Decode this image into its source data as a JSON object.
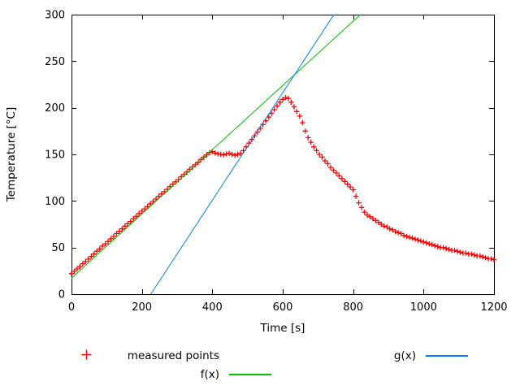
{
  "chart_data": {
    "type": "scatter",
    "title": "",
    "xlabel": "Time [s]",
    "ylabel": "Temperature [°C]",
    "xlim": [
      0,
      1200
    ],
    "ylim": [
      0,
      300
    ],
    "xticks": [
      0,
      200,
      400,
      600,
      800,
      1000,
      1200
    ],
    "yticks": [
      0,
      50,
      100,
      150,
      200,
      250,
      300
    ],
    "grid": false,
    "legend_position": "below-plot",
    "series": [
      {
        "id": "measured",
        "name": "measured points",
        "type": "scatter",
        "marker": "plus",
        "color": "#ff0000",
        "points": [
          [
            0,
            22
          ],
          [
            8,
            24.5
          ],
          [
            16,
            27
          ],
          [
            24,
            29.5
          ],
          [
            32,
            32.5
          ],
          [
            40,
            35
          ],
          [
            48,
            37.5
          ],
          [
            56,
            40.5
          ],
          [
            64,
            43
          ],
          [
            72,
            46
          ],
          [
            80,
            48.5
          ],
          [
            88,
            51.5
          ],
          [
            96,
            54
          ],
          [
            104,
            56.5
          ],
          [
            112,
            59.5
          ],
          [
            120,
            62
          ],
          [
            128,
            65
          ],
          [
            136,
            67.5
          ],
          [
            144,
            70
          ],
          [
            152,
            73
          ],
          [
            160,
            75.5
          ],
          [
            168,
            78
          ],
          [
            176,
            81
          ],
          [
            184,
            83.5
          ],
          [
            192,
            86.5
          ],
          [
            200,
            89
          ],
          [
            208,
            91.5
          ],
          [
            216,
            94
          ],
          [
            224,
            97
          ],
          [
            232,
            99.5
          ],
          [
            240,
            102
          ],
          [
            248,
            105
          ],
          [
            256,
            107.5
          ],
          [
            264,
            110
          ],
          [
            272,
            112.5
          ],
          [
            280,
            115.5
          ],
          [
            288,
            118
          ],
          [
            296,
            120.5
          ],
          [
            304,
            123
          ],
          [
            312,
            126
          ],
          [
            320,
            128.5
          ],
          [
            328,
            131
          ],
          [
            336,
            134
          ],
          [
            344,
            136.5
          ],
          [
            352,
            139
          ],
          [
            360,
            141.5
          ],
          [
            368,
            144.5
          ],
          [
            376,
            147
          ],
          [
            384,
            149.5
          ],
          [
            392,
            152
          ],
          [
            400,
            153
          ],
          [
            408,
            151.5
          ],
          [
            416,
            150.5
          ],
          [
            424,
            150
          ],
          [
            432,
            149.5
          ],
          [
            440,
            150.5
          ],
          [
            448,
            151
          ],
          [
            456,
            150
          ],
          [
            464,
            149
          ],
          [
            472,
            150
          ],
          [
            480,
            151
          ],
          [
            488,
            154
          ],
          [
            496,
            158
          ],
          [
            504,
            162
          ],
          [
            512,
            166
          ],
          [
            520,
            170
          ],
          [
            528,
            174
          ],
          [
            536,
            178
          ],
          [
            544,
            182
          ],
          [
            552,
            186
          ],
          [
            560,
            190
          ],
          [
            568,
            194
          ],
          [
            576,
            198
          ],
          [
            584,
            202
          ],
          [
            592,
            206
          ],
          [
            600,
            209
          ],
          [
            608,
            211
          ],
          [
            616,
            210
          ],
          [
            624,
            206
          ],
          [
            632,
            201
          ],
          [
            640,
            196
          ],
          [
            648,
            191
          ],
          [
            656,
            184
          ],
          [
            664,
            175
          ],
          [
            672,
            168
          ],
          [
            680,
            163
          ],
          [
            688,
            158
          ],
          [
            696,
            154
          ],
          [
            704,
            150
          ],
          [
            712,
            147
          ],
          [
            720,
            143
          ],
          [
            728,
            140
          ],
          [
            736,
            136
          ],
          [
            744,
            133
          ],
          [
            752,
            130
          ],
          [
            760,
            127
          ],
          [
            768,
            124
          ],
          [
            776,
            121
          ],
          [
            784,
            118
          ],
          [
            792,
            115
          ],
          [
            800,
            112
          ],
          [
            808,
            105
          ],
          [
            816,
            98
          ],
          [
            824,
            93
          ],
          [
            832,
            88
          ],
          [
            840,
            85
          ],
          [
            848,
            83
          ],
          [
            856,
            81
          ],
          [
            864,
            79
          ],
          [
            872,
            77
          ],
          [
            880,
            75
          ],
          [
            888,
            73
          ],
          [
            896,
            72
          ],
          [
            904,
            70
          ],
          [
            912,
            69
          ],
          [
            920,
            67
          ],
          [
            928,
            66
          ],
          [
            936,
            65
          ],
          [
            944,
            63
          ],
          [
            952,
            62
          ],
          [
            960,
            61
          ],
          [
            968,
            60
          ],
          [
            976,
            59
          ],
          [
            984,
            58
          ],
          [
            992,
            57
          ],
          [
            1000,
            56
          ],
          [
            1008,
            55
          ],
          [
            1016,
            54
          ],
          [
            1024,
            53
          ],
          [
            1032,
            52
          ],
          [
            1040,
            51
          ],
          [
            1048,
            50
          ],
          [
            1056,
            50
          ],
          [
            1064,
            49
          ],
          [
            1072,
            48
          ],
          [
            1080,
            47
          ],
          [
            1088,
            47
          ],
          [
            1096,
            46
          ],
          [
            1104,
            45
          ],
          [
            1112,
            44
          ],
          [
            1120,
            44
          ],
          [
            1128,
            43
          ],
          [
            1136,
            43
          ],
          [
            1144,
            42
          ],
          [
            1152,
            41
          ],
          [
            1160,
            41
          ],
          [
            1168,
            40
          ],
          [
            1176,
            39
          ],
          [
            1184,
            38
          ],
          [
            1192,
            38
          ],
          [
            1200,
            37
          ]
        ]
      },
      {
        "id": "f",
        "name": "f(x)",
        "type": "line",
        "color": "#00c000",
        "slope": 0.345,
        "intercept": 17
      },
      {
        "id": "g",
        "name": "g(x)",
        "type": "line",
        "color": "#0080ff",
        "slope": 0.577,
        "intercept": -130
      }
    ]
  }
}
